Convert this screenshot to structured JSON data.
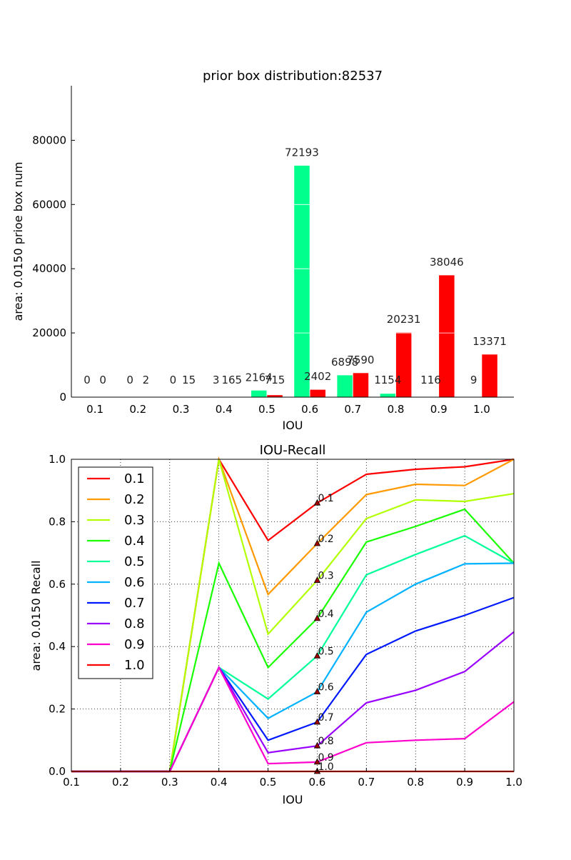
{
  "chart_data": [
    {
      "type": "bar",
      "title": "prior box distribution:82537",
      "xlabel": "IOU",
      "ylabel": "area: 0.0150 prioe box num",
      "categories": [
        "0.1",
        "0.2",
        "0.3",
        "0.4",
        "0.5",
        "0.6",
        "0.7",
        "0.8",
        "0.9",
        "1.0"
      ],
      "ylim": [
        0,
        97000
      ],
      "yticks": [
        "0",
        "20000",
        "40000",
        "60000",
        "80000"
      ],
      "ytick_values": [
        0,
        20000,
        40000,
        60000,
        80000
      ],
      "series": [
        {
          "color": "#00ff8c",
          "values": [
            0,
            0,
            0,
            3,
            2164,
            72193,
            6898,
            1154,
            116,
            9
          ],
          "labels": [
            "0",
            "0",
            "0",
            "3",
            "2164",
            "72193",
            "6898",
            "1154",
            "116",
            "9"
          ]
        },
        {
          "color": "#ff0000",
          "values": [
            0,
            2,
            15,
            165,
            715,
            2402,
            7590,
            20231,
            38046,
            13371
          ],
          "labels": [
            "0",
            "2",
            "15",
            "165",
            "715",
            "2402",
            "7590",
            "20231",
            "38046",
            "13371"
          ]
        }
      ]
    },
    {
      "type": "line",
      "title": "IOU-Recall",
      "xlabel": "IOU",
      "ylabel": "area: 0.0150 Recall",
      "xlim": [
        0.1,
        1.0
      ],
      "ylim": [
        0.0,
        1.0
      ],
      "x": [
        0.1,
        0.2,
        0.3,
        0.4,
        0.5,
        0.6,
        0.7,
        0.8,
        0.9,
        1.0
      ],
      "xticks": [
        "0.1",
        "0.2",
        "0.3",
        "0.4",
        "0.5",
        "0.6",
        "0.7",
        "0.8",
        "0.9",
        "1.0"
      ],
      "yticks": [
        "0.0",
        "0.2",
        "0.4",
        "0.6",
        "0.8",
        "1.0"
      ],
      "grid": true,
      "legend": "upper-left",
      "series": [
        {
          "name": "0.1",
          "color": "#ff0000",
          "values": [
            0,
            0,
            0,
            1.0,
            0.74,
            0.86,
            0.952,
            0.968,
            0.976,
            1.0
          ]
        },
        {
          "name": "0.2",
          "color": "#ff9900",
          "values": [
            0,
            0,
            0,
            1.0,
            0.567,
            0.73,
            0.887,
            0.92,
            0.916,
            1.0
          ]
        },
        {
          "name": "0.3",
          "color": "#b2ff00",
          "values": [
            0,
            0,
            0,
            1.0,
            0.44,
            0.612,
            0.81,
            0.87,
            0.865,
            0.89
          ]
        },
        {
          "name": "0.4",
          "color": "#19ff00",
          "values": [
            0,
            0,
            0,
            0.667,
            0.333,
            0.49,
            0.735,
            0.785,
            0.84,
            0.667
          ]
        },
        {
          "name": "0.5",
          "color": "#00ff99",
          "values": [
            0,
            0,
            0,
            0.333,
            0.232,
            0.37,
            0.63,
            0.695,
            0.755,
            0.667
          ]
        },
        {
          "name": "0.6",
          "color": "#00b2ff",
          "values": [
            0,
            0,
            0,
            0.333,
            0.17,
            0.255,
            0.51,
            0.6,
            0.665,
            0.667
          ]
        },
        {
          "name": "0.7",
          "color": "#0019ff",
          "values": [
            0,
            0,
            0,
            0.333,
            0.1,
            0.158,
            0.375,
            0.45,
            0.5,
            0.557
          ]
        },
        {
          "name": "0.8",
          "color": "#9900ff",
          "values": [
            0,
            0,
            0,
            0.333,
            0.06,
            0.082,
            0.22,
            0.26,
            0.32,
            0.447
          ]
        },
        {
          "name": "0.9",
          "color": "#ff00cc",
          "values": [
            0,
            0,
            0,
            0.333,
            0.025,
            0.03,
            0.092,
            0.1,
            0.105,
            0.223
          ]
        },
        {
          "name": "1.0",
          "color": "#ff0000",
          "values": [
            0,
            0,
            0,
            0,
            0,
            0,
            0,
            0,
            0,
            0
          ]
        }
      ],
      "markers": {
        "x": 0.6,
        "color": "#a00000",
        "points": [
          {
            "label": "0.1",
            "value": 0.86
          },
          {
            "label": "0.2",
            "value": 0.73
          },
          {
            "label": "0.3",
            "value": 0.612
          },
          {
            "label": "0.4",
            "value": 0.49
          },
          {
            "label": "0.5",
            "value": 0.37
          },
          {
            "label": "0.6",
            "value": 0.255
          },
          {
            "label": "0.7",
            "value": 0.158
          },
          {
            "label": "0.8",
            "value": 0.082
          },
          {
            "label": "0.9",
            "value": 0.03
          },
          {
            "label": "1.0",
            "value": 0.0
          }
        ]
      }
    }
  ]
}
